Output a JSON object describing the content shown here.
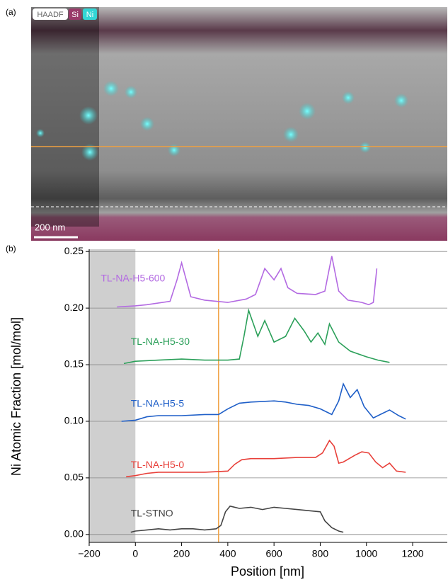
{
  "panel_a": {
    "label": "(a)",
    "channels": [
      "HAADF",
      "Si",
      "Ni"
    ],
    "scale_bar": "200 nm"
  },
  "chart_data": {
    "type": "line",
    "panel_label": "(b)",
    "xlabel": "Position [nm]",
    "ylabel": "Ni Atomic Fraction [mol/mol]",
    "xlim": [
      -200,
      1350
    ],
    "ylim": [
      -0.007,
      0.252
    ],
    "xticks": [
      {
        "value": -200,
        "label": "−200"
      },
      0,
      200,
      400,
      600,
      800,
      1000,
      1200
    ],
    "yticks": [
      {
        "value": 0,
        "label": "0.00"
      },
      0.05,
      {
        "value": 0.1,
        "label": "0.10"
      },
      0.15,
      {
        "value": 0.2,
        "label": "0.20"
      },
      0.25
    ],
    "grid": true,
    "shade_x": [
      -200,
      0
    ],
    "vline": 360,
    "vline_color": "#f0a040",
    "series": [
      {
        "name": "TL-STNO",
        "color": "#444444",
        "x": [
          -20,
          0,
          50,
          100,
          150,
          200,
          250,
          300,
          350,
          370,
          390,
          410,
          450,
          500,
          550,
          600,
          650,
          700,
          750,
          800,
          820,
          850,
          880,
          900
        ],
        "values": [
          0.002,
          0.003,
          0.004,
          0.005,
          0.004,
          0.005,
          0.005,
          0.004,
          0.005,
          0.008,
          0.02,
          0.025,
          0.023,
          0.024,
          0.022,
          0.024,
          0.023,
          0.022,
          0.021,
          0.02,
          0.012,
          0.006,
          0.003,
          0.002
        ]
      },
      {
        "name": "TL-NA-H5-0",
        "color": "#e8403a",
        "x": [
          -40,
          0,
          50,
          100,
          200,
          300,
          400,
          430,
          460,
          500,
          600,
          700,
          780,
          810,
          840,
          860,
          880,
          900,
          950,
          980,
          1010,
          1040,
          1070,
          1100,
          1130,
          1170
        ],
        "values": [
          0.051,
          0.052,
          0.054,
          0.055,
          0.055,
          0.055,
          0.056,
          0.062,
          0.066,
          0.067,
          0.067,
          0.068,
          0.068,
          0.072,
          0.083,
          0.078,
          0.063,
          0.064,
          0.07,
          0.073,
          0.072,
          0.064,
          0.059,
          0.063,
          0.056,
          0.055
        ]
      },
      {
        "name": "TL-NA-H5-5",
        "color": "#1f5fc8",
        "x": [
          -60,
          0,
          50,
          100,
          200,
          300,
          360,
          400,
          450,
          500,
          600,
          650,
          700,
          750,
          800,
          850,
          880,
          900,
          930,
          960,
          990,
          1030,
          1060,
          1100,
          1140,
          1170
        ],
        "values": [
          0.1,
          0.101,
          0.104,
          0.105,
          0.105,
          0.106,
          0.106,
          0.111,
          0.116,
          0.117,
          0.118,
          0.117,
          0.115,
          0.114,
          0.111,
          0.106,
          0.118,
          0.133,
          0.121,
          0.128,
          0.113,
          0.103,
          0.106,
          0.11,
          0.105,
          0.102
        ]
      },
      {
        "name": "TL-NA-H5-30",
        "color": "#2ca05a",
        "x": [
          -50,
          0,
          100,
          200,
          300,
          400,
          450,
          470,
          490,
          530,
          560,
          600,
          650,
          690,
          730,
          760,
          790,
          820,
          840,
          880,
          930,
          1000,
          1050,
          1100
        ],
        "values": [
          0.151,
          0.153,
          0.154,
          0.155,
          0.154,
          0.154,
          0.155,
          0.175,
          0.198,
          0.175,
          0.189,
          0.17,
          0.175,
          0.191,
          0.18,
          0.17,
          0.178,
          0.168,
          0.186,
          0.17,
          0.162,
          0.157,
          0.154,
          0.152
        ]
      },
      {
        "name": "TL-NA-H5-600",
        "color": "#b36ae2",
        "x": [
          -80,
          0,
          50,
          150,
          180,
          200,
          240,
          300,
          400,
          480,
          520,
          560,
          600,
          630,
          660,
          700,
          780,
          820,
          850,
          880,
          920,
          980,
          1010,
          1030,
          1045
        ],
        "values": [
          0.201,
          0.202,
          0.203,
          0.206,
          0.225,
          0.24,
          0.21,
          0.207,
          0.205,
          0.208,
          0.212,
          0.235,
          0.225,
          0.235,
          0.218,
          0.213,
          0.212,
          0.215,
          0.246,
          0.215,
          0.207,
          0.205,
          0.203,
          0.205,
          0.235
        ]
      }
    ]
  }
}
